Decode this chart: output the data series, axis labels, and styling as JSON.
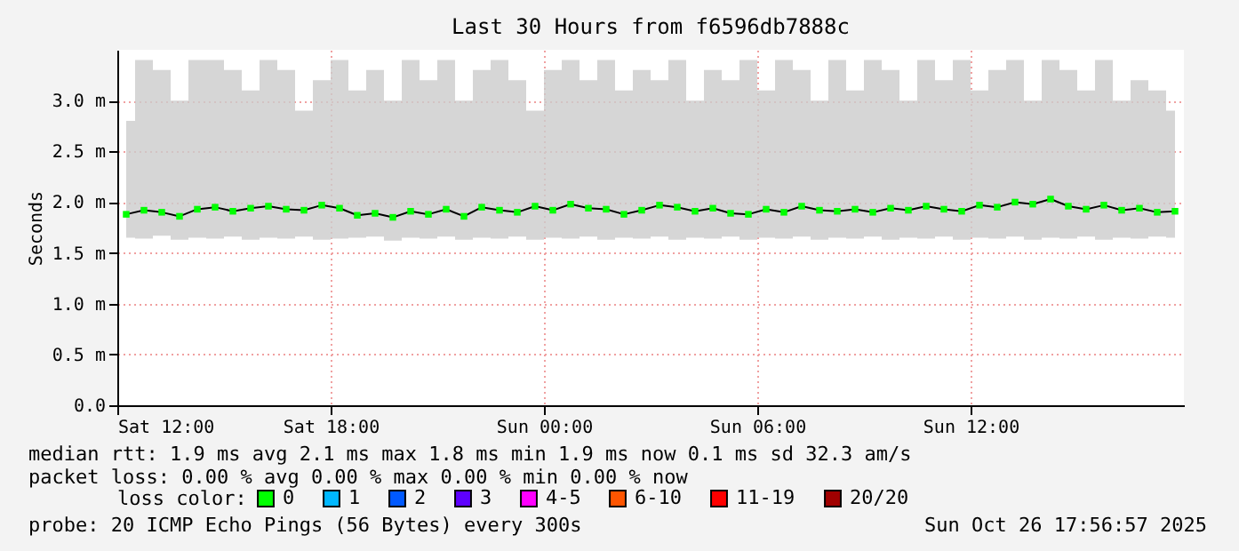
{
  "chart_data": {
    "type": "line",
    "title": "Last 30 Hours from f6596db7888c",
    "ylabel": "Seconds",
    "x": [
      "2025-10-25T12:15",
      "2025-10-25T12:45",
      "2025-10-25T13:15",
      "2025-10-25T13:45",
      "2025-10-25T14:15",
      "2025-10-25T14:45",
      "2025-10-25T15:15",
      "2025-10-25T15:45",
      "2025-10-25T16:15",
      "2025-10-25T16:45",
      "2025-10-25T17:15",
      "2025-10-25T17:45",
      "2025-10-25T18:15",
      "2025-10-25T18:45",
      "2025-10-25T19:15",
      "2025-10-25T19:45",
      "2025-10-25T20:15",
      "2025-10-25T20:45",
      "2025-10-25T21:15",
      "2025-10-25T21:45",
      "2025-10-25T22:15",
      "2025-10-25T22:45",
      "2025-10-25T23:15",
      "2025-10-25T23:45",
      "2025-10-26T00:15",
      "2025-10-26T00:45",
      "2025-10-26T01:15",
      "2025-10-26T01:45",
      "2025-10-26T02:15",
      "2025-10-26T02:45",
      "2025-10-26T03:15",
      "2025-10-26T03:45",
      "2025-10-26T04:15",
      "2025-10-26T04:45",
      "2025-10-26T05:15",
      "2025-10-26T05:45",
      "2025-10-26T06:15",
      "2025-10-26T06:45",
      "2025-10-26T07:15",
      "2025-10-26T07:45",
      "2025-10-26T08:15",
      "2025-10-26T08:45",
      "2025-10-26T09:15",
      "2025-10-26T09:45",
      "2025-10-26T10:15",
      "2025-10-26T10:45",
      "2025-10-26T11:15",
      "2025-10-26T11:45",
      "2025-10-26T12:15",
      "2025-10-26T12:45",
      "2025-10-26T13:15",
      "2025-10-26T13:45",
      "2025-10-26T14:15",
      "2025-10-26T14:45",
      "2025-10-26T15:15",
      "2025-10-26T15:45",
      "2025-10-26T16:15",
      "2025-10-26T16:45",
      "2025-10-26T17:15",
      "2025-10-26T17:45"
    ],
    "series": [
      {
        "name": "0",
        "color": "#00ff00",
        "values": [
          1.88,
          1.92,
          1.9,
          1.86,
          1.93,
          1.95,
          1.91,
          1.94,
          1.96,
          1.93,
          1.92,
          1.97,
          1.94,
          1.87,
          1.89,
          1.85,
          1.91,
          1.88,
          1.93,
          1.86,
          1.95,
          1.92,
          1.9,
          1.96,
          1.92,
          1.98,
          1.94,
          1.93,
          1.88,
          1.92,
          1.97,
          1.95,
          1.91,
          1.94,
          1.89,
          1.88,
          1.93,
          1.9,
          1.96,
          1.92,
          1.91,
          1.93,
          1.9,
          1.94,
          1.92,
          1.96,
          1.93,
          1.91,
          1.97,
          1.95,
          2.0,
          1.98,
          2.03,
          1.96,
          1.93,
          1.97,
          1.92,
          1.94,
          1.9,
          1.91
        ],
        "lower": [
          1.65,
          1.64,
          1.67,
          1.63,
          1.65,
          1.64,
          1.66,
          1.63,
          1.65,
          1.64,
          1.66,
          1.63,
          1.64,
          1.65,
          1.66,
          1.62,
          1.65,
          1.64,
          1.66,
          1.63,
          1.65,
          1.64,
          1.66,
          1.63,
          1.65,
          1.64,
          1.66,
          1.63,
          1.65,
          1.64,
          1.66,
          1.63,
          1.65,
          1.64,
          1.66,
          1.63,
          1.65,
          1.64,
          1.66,
          1.63,
          1.65,
          1.64,
          1.66,
          1.63,
          1.65,
          1.64,
          1.66,
          1.63,
          1.65,
          1.64,
          1.66,
          1.63,
          1.65,
          1.64,
          1.66,
          1.63,
          1.65,
          1.64,
          1.66,
          1.65
        ],
        "upper": [
          2.8,
          3.4,
          3.3,
          3.0,
          3.4,
          3.4,
          3.3,
          3.1,
          3.4,
          3.3,
          2.9,
          3.2,
          3.4,
          3.1,
          3.3,
          3.0,
          3.4,
          3.2,
          3.4,
          3.0,
          3.3,
          3.4,
          3.2,
          2.9,
          3.3,
          3.4,
          3.2,
          3.4,
          3.1,
          3.3,
          3.2,
          3.4,
          3.0,
          3.3,
          3.2,
          3.4,
          3.1,
          3.4,
          3.3,
          3.0,
          3.4,
          3.1,
          3.4,
          3.3,
          3.0,
          3.4,
          3.2,
          3.4,
          3.1,
          3.3,
          3.4,
          3.0,
          3.4,
          3.3,
          3.1,
          3.4,
          3.0,
          3.2,
          3.1,
          2.9
        ]
      },
      {
        "name": "1",
        "color": "#00b8ff",
        "values": [
          null,
          null,
          null,
          null,
          null,
          null,
          null,
          null,
          null,
          null,
          null,
          null,
          null,
          null,
          null,
          null,
          null,
          null,
          null,
          null,
          null,
          null,
          null,
          null,
          null,
          null,
          null,
          null,
          null,
          null,
          null,
          null,
          null,
          null,
          null,
          null,
          null,
          null,
          null,
          null,
          null,
          null,
          null,
          null,
          null,
          null,
          null,
          null,
          null,
          null,
          null,
          null,
          null,
          null,
          null,
          null,
          null,
          null,
          null,
          null
        ]
      },
      {
        "name": "2",
        "color": "#0059ff",
        "values": [
          null,
          null,
          null,
          null,
          null,
          null,
          null,
          null,
          null,
          null,
          null,
          null,
          null,
          null,
          null,
          null,
          null,
          null,
          null,
          null,
          null,
          null,
          null,
          null,
          null,
          null,
          null,
          null,
          null,
          null,
          null,
          null,
          null,
          null,
          null,
          null,
          null,
          null,
          null,
          null,
          null,
          null,
          null,
          null,
          null,
          null,
          null,
          null,
          null,
          null,
          null,
          null,
          null,
          null,
          null,
          null,
          null,
          null,
          null,
          null
        ]
      },
      {
        "name": "3",
        "color": "#5e00ff",
        "values": [
          null,
          null,
          null,
          null,
          null,
          null,
          null,
          null,
          null,
          null,
          null,
          null,
          null,
          null,
          null,
          null,
          null,
          null,
          null,
          null,
          null,
          null,
          null,
          null,
          null,
          null,
          null,
          null,
          null,
          null,
          null,
          null,
          null,
          null,
          null,
          null,
          null,
          null,
          null,
          null,
          null,
          null,
          null,
          null,
          null,
          null,
          null,
          null,
          null,
          null,
          null,
          null,
          null,
          null,
          null,
          null,
          null,
          null,
          null,
          null
        ]
      },
      {
        "name": "4-5",
        "color": "#ff00ff",
        "values": [
          null,
          null,
          null,
          null,
          null,
          null,
          null,
          null,
          null,
          null,
          null,
          null,
          null,
          null,
          null,
          null,
          null,
          null,
          null,
          null,
          null,
          null,
          null,
          null,
          null,
          null,
          null,
          null,
          null,
          null,
          null,
          null,
          null,
          null,
          null,
          null,
          null,
          null,
          null,
          null,
          null,
          null,
          null,
          null,
          null,
          null,
          null,
          null,
          null,
          null,
          null,
          null,
          null,
          null,
          null,
          null,
          null,
          null,
          null,
          null
        ]
      },
      {
        "name": "6-10",
        "color": "#ff5500",
        "values": [
          null,
          null,
          null,
          null,
          null,
          null,
          null,
          null,
          null,
          null,
          null,
          null,
          null,
          null,
          null,
          null,
          null,
          null,
          null,
          null,
          null,
          null,
          null,
          null,
          null,
          null,
          null,
          null,
          null,
          null,
          null,
          null,
          null,
          null,
          null,
          null,
          null,
          null,
          null,
          null,
          null,
          null,
          null,
          null,
          null,
          null,
          null,
          null,
          null,
          null,
          null,
          null,
          null,
          null,
          null,
          null,
          null,
          null,
          null,
          null
        ]
      },
      {
        "name": "11-19",
        "color": "#ff0000",
        "values": [
          null,
          null,
          null,
          null,
          null,
          null,
          null,
          null,
          null,
          null,
          null,
          null,
          null,
          null,
          null,
          null,
          null,
          null,
          null,
          null,
          null,
          null,
          null,
          null,
          null,
          null,
          null,
          null,
          null,
          null,
          null,
          null,
          null,
          null,
          null,
          null,
          null,
          null,
          null,
          null,
          null,
          null,
          null,
          null,
          null,
          null,
          null,
          null,
          null,
          null,
          null,
          null,
          null,
          null,
          null,
          null,
          null,
          null,
          null,
          null
        ]
      },
      {
        "name": "20/20",
        "color": "#a10000",
        "values": [
          null,
          null,
          null,
          null,
          null,
          null,
          null,
          null,
          null,
          null,
          null,
          null,
          null,
          null,
          null,
          null,
          null,
          null,
          null,
          null,
          null,
          null,
          null,
          null,
          null,
          null,
          null,
          null,
          null,
          null,
          null,
          null,
          null,
          null,
          null,
          null,
          null,
          null,
          null,
          null,
          null,
          null,
          null,
          null,
          null,
          null,
          null,
          null,
          null,
          null,
          null,
          null,
          null,
          null,
          null,
          null,
          null,
          null,
          null,
          null
        ]
      }
    ],
    "legend": "bottom",
    "legend_title": "loss color:",
    "xlim": [
      "2025-10-25T12:00",
      "2025-10-26T18:00"
    ],
    "xticks": [
      {
        "value": "2025-10-25T12:00",
        "label": "Sat 12:00"
      },
      {
        "value": "2025-10-25T18:00",
        "label": "Sat 18:00"
      },
      {
        "value": "2025-10-26T00:00",
        "label": "Sun 00:00"
      },
      {
        "value": "2025-10-26T06:00",
        "label": "Sun 06:00"
      },
      {
        "value": "2025-10-26T12:00",
        "label": "Sun 12:00"
      }
    ],
    "ylim": [
      0,
      3.5
    ],
    "yticks": [
      {
        "value": 0,
        "label": "0.0"
      },
      {
        "value": 0.5,
        "label": "0.5 m"
      },
      {
        "value": 1,
        "label": "1.0 m"
      },
      {
        "value": 1.5,
        "label": "1.5 m"
      },
      {
        "value": 2,
        "label": "2.0 m"
      },
      {
        "value": 2.5,
        "label": "2.5 m"
      },
      {
        "value": 3,
        "label": "3.0 m"
      }
    ],
    "grid": true,
    "marker": "square",
    "line_style": "solid",
    "annotations": [
      "median rtt:  1.9 ms avg  2.1 ms max  1.8 ms min  1.9 ms now  0.1 ms sd  32.3  am/s",
      "packet loss: 0.00 % avg  0.00 % max  0.00 % min  0.00 % now",
      "probe:  20 ICMP Echo Pings (56 Bytes) every 300s",
      "Sun Oct 26 17:56:57 2025"
    ]
  }
}
